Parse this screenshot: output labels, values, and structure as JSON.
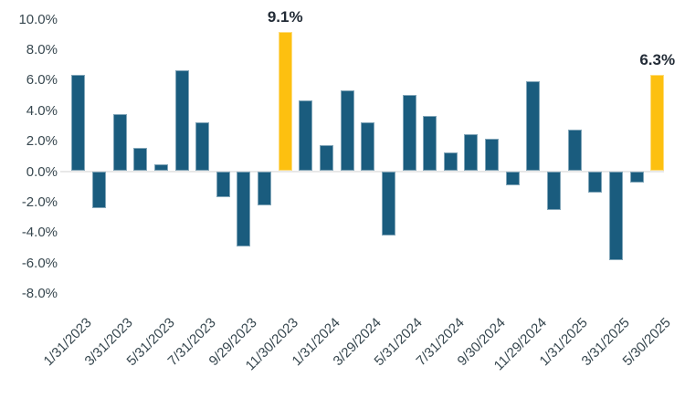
{
  "chart_data": {
    "type": "bar",
    "title": "",
    "description": "Monthly percentage returns bar chart, Jan 2023 through May 2025, with two highlighted bars",
    "values": [
      6.3,
      -2.4,
      3.7,
      1.5,
      0.4,
      6.6,
      3.2,
      -1.7,
      -4.9,
      -2.2,
      9.1,
      4.6,
      1.7,
      5.3,
      3.2,
      -4.2,
      5.0,
      3.6,
      1.2,
      2.4,
      2.1,
      -0.9,
      5.9,
      -2.5,
      2.7,
      -1.4,
      -5.8,
      -0.7,
      6.3
    ],
    "x_axis": {
      "tick_labels": [
        "1/31/2023",
        "3/31/2023",
        "5/31/2023",
        "7/31/2023",
        "9/29/2023",
        "11/30/2023",
        "1/31/2024",
        "3/29/2024",
        "5/31/2024",
        "7/31/2024",
        "9/30/2024",
        "11/29/2024",
        "1/31/2025",
        "3/31/2025",
        "5/30/2025"
      ],
      "labeled_bar_indices": [
        0,
        2,
        4,
        6,
        8,
        10,
        12,
        14,
        16,
        18,
        20,
        22,
        24,
        26,
        28
      ],
      "tick_rotation_deg": -45
    },
    "y_axis": {
      "tick_labels": [
        "10.0%",
        "8.0%",
        "6.0%",
        "4.0%",
        "2.0%",
        "0.0%",
        "-2.0%",
        "-4.0%",
        "-6.0%",
        "-8.0%"
      ],
      "tick_values": [
        10,
        8,
        6,
        4,
        2,
        0,
        -2,
        -4,
        -6,
        -8
      ],
      "ylim": [
        -8,
        10
      ]
    },
    "highlights": [
      {
        "index": 10,
        "label": "9.1%"
      },
      {
        "index": 28,
        "label": "6.3%"
      }
    ],
    "grid": false,
    "legend": false,
    "colors": {
      "bar": "#1A5C7E",
      "highlight": "#FDC010",
      "tick_text": "#37474F",
      "data_label_text": "#222B36",
      "baseline": "#E8E8E8",
      "background": "#FFFFFF"
    }
  }
}
